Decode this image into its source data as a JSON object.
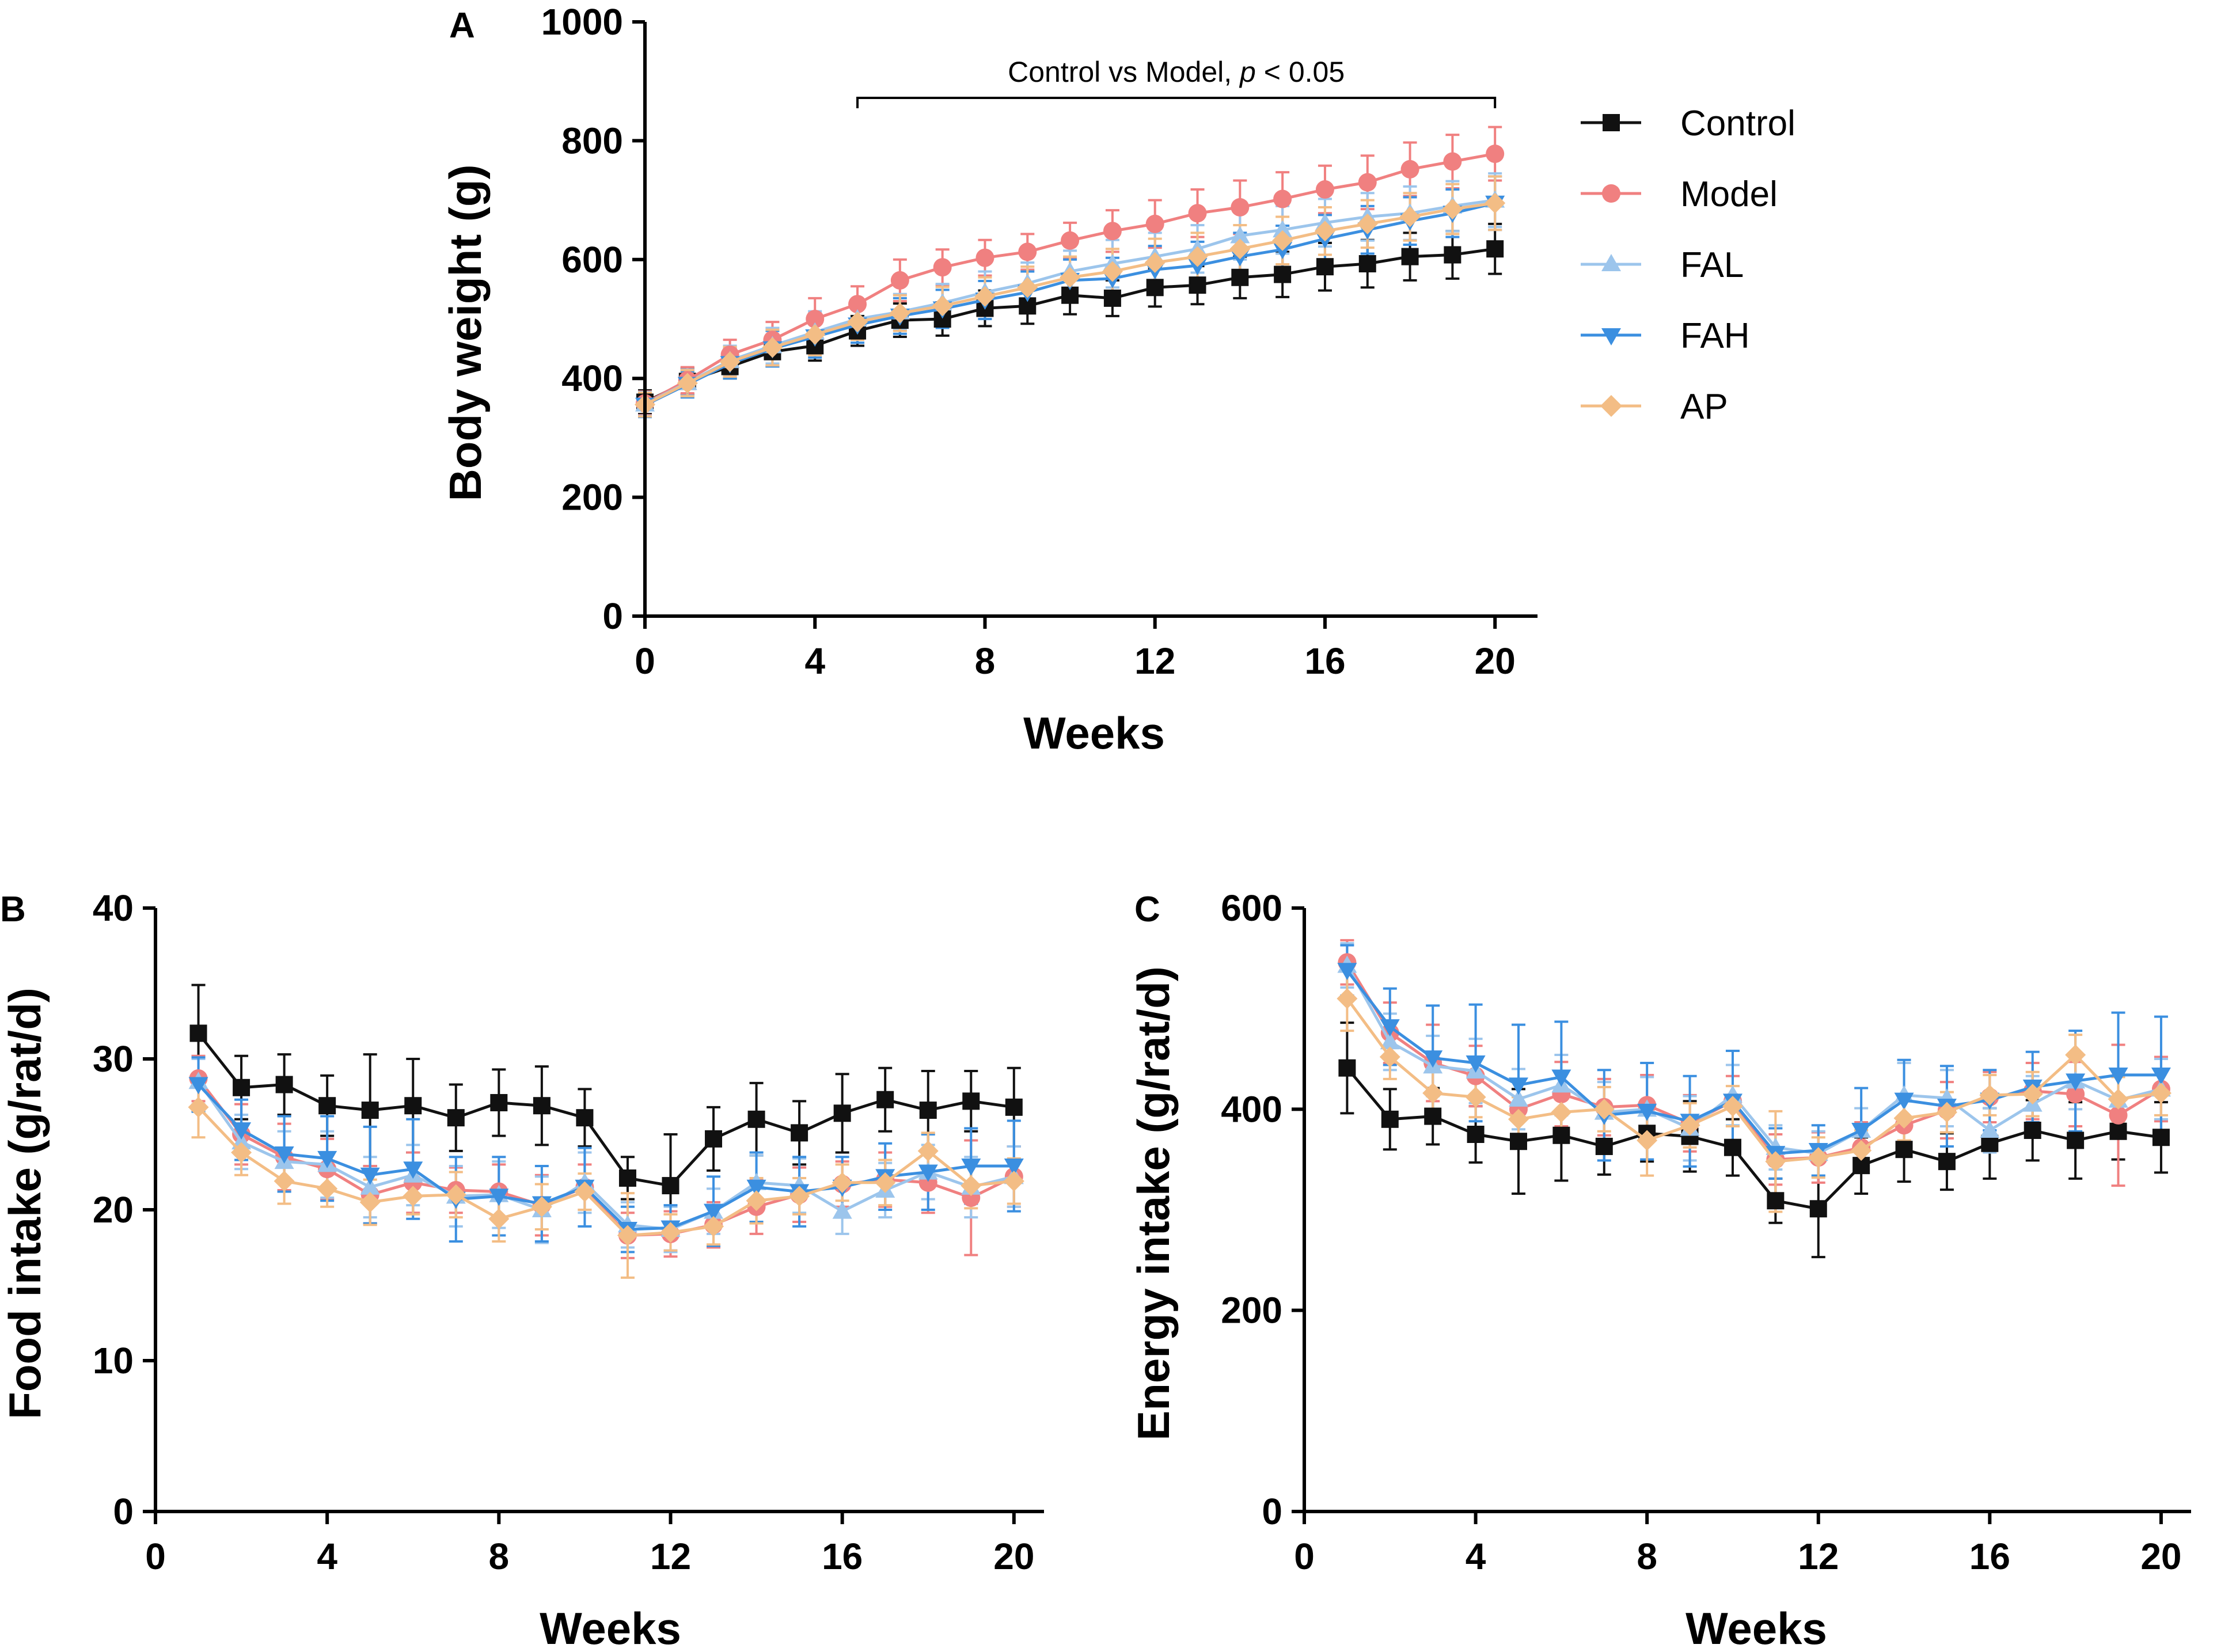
{
  "chart_data": [
    {
      "id": "A",
      "panel_label": "A",
      "type": "line",
      "xlabel": "Weeks",
      "ylabel": "Body weight (g)",
      "xlim": [
        0,
        21
      ],
      "ylim": [
        0,
        1000
      ],
      "xticks": [
        0,
        4,
        8,
        12,
        16,
        20
      ],
      "yticks": [
        0,
        200,
        400,
        600,
        800,
        1000
      ],
      "x": [
        0,
        1,
        2,
        3,
        4,
        5,
        6,
        7,
        8,
        9,
        10,
        11,
        12,
        13,
        14,
        15,
        16,
        17,
        18,
        19,
        20
      ],
      "annotation": {
        "text_prefix": "Control vs Model, ",
        "text_p": "p",
        "text_suffix": " < 0.05",
        "x_start": 5,
        "x_end": 20
      },
      "legend": {
        "position": "right",
        "entries": [
          "Control",
          "Model",
          "FAL",
          "FAH",
          "AP"
        ]
      },
      "series": [
        {
          "name": "Control",
          "values": [
            360,
            395,
            420,
            445,
            455,
            480,
            498,
            500,
            518,
            522,
            540,
            535,
            553,
            557,
            570,
            575,
            588,
            593,
            605,
            608,
            618
          ],
          "errors": [
            20,
            22,
            20,
            25,
            25,
            25,
            28,
            28,
            30,
            30,
            32,
            30,
            32,
            32,
            35,
            38,
            40,
            40,
            40,
            40,
            42
          ]
        },
        {
          "name": "Model",
          "values": [
            358,
            397,
            440,
            465,
            500,
            525,
            565,
            587,
            603,
            613,
            632,
            648,
            660,
            678,
            688,
            702,
            718,
            730,
            752,
            765,
            778
          ],
          "errors": [
            20,
            22,
            25,
            30,
            35,
            30,
            35,
            30,
            30,
            30,
            30,
            35,
            40,
            40,
            45,
            45,
            40,
            45,
            45,
            45,
            45
          ]
        },
        {
          "name": "FAL",
          "values": [
            357,
            393,
            430,
            455,
            478,
            500,
            512,
            527,
            545,
            560,
            580,
            593,
            605,
            618,
            640,
            650,
            662,
            672,
            678,
            690,
            700
          ],
          "errors": [
            20,
            22,
            25,
            30,
            35,
            30,
            30,
            32,
            35,
            35,
            35,
            40,
            40,
            40,
            40,
            40,
            40,
            40,
            45,
            42,
            45
          ]
        },
        {
          "name": "FAH",
          "values": [
            355,
            390,
            425,
            450,
            470,
            490,
            505,
            517,
            532,
            545,
            565,
            568,
            583,
            590,
            605,
            617,
            635,
            650,
            665,
            678,
            695
          ],
          "errors": [
            20,
            22,
            25,
            30,
            35,
            30,
            30,
            32,
            32,
            35,
            35,
            35,
            40,
            40,
            40,
            40,
            40,
            40,
            40,
            40,
            45
          ]
        },
        {
          "name": "AP",
          "values": [
            356,
            392,
            428,
            452,
            474,
            495,
            510,
            522,
            538,
            553,
            570,
            580,
            595,
            605,
            618,
            632,
            648,
            660,
            672,
            685,
            695
          ],
          "errors": [
            20,
            22,
            25,
            30,
            35,
            30,
            30,
            32,
            32,
            35,
            35,
            38,
            40,
            40,
            40,
            40,
            40,
            40,
            40,
            42,
            45
          ]
        }
      ]
    },
    {
      "id": "B",
      "panel_label": "B",
      "type": "line",
      "xlabel": "Weeks",
      "ylabel": "Food intake (g/rat/d)",
      "xlim": [
        0,
        20.7
      ],
      "ylim": [
        0,
        40
      ],
      "xticks": [
        0,
        4,
        8,
        12,
        16,
        20
      ],
      "yticks": [
        0,
        10,
        20,
        30,
        40
      ],
      "x": [
        1,
        2,
        3,
        4,
        5,
        6,
        7,
        8,
        9,
        10,
        11,
        12,
        13,
        14,
        15,
        16,
        17,
        18,
        19,
        20
      ],
      "series": [
        {
          "name": "Control",
          "values": [
            31.7,
            28.1,
            28.3,
            26.9,
            26.6,
            26.9,
            26.1,
            27.1,
            26.9,
            26.1,
            22.1,
            21.6,
            24.7,
            26.0,
            25.1,
            26.4,
            27.3,
            26.6,
            27.2,
            26.8
          ],
          "errors": [
            3.2,
            2.1,
            2.0,
            2.0,
            3.7,
            3.1,
            2.2,
            2.2,
            2.6,
            1.9,
            1.4,
            3.4,
            2.1,
            2.4,
            2.1,
            2.6,
            2.1,
            2.6,
            2.0,
            2.6
          ]
        },
        {
          "name": "Model",
          "values": [
            28.7,
            25.0,
            23.5,
            22.7,
            21.0,
            21.8,
            21.3,
            21.2,
            20.3,
            21.5,
            18.3,
            18.4,
            19.0,
            20.2,
            21.0,
            21.7,
            22.0,
            21.8,
            20.8,
            22.2
          ],
          "errors": [
            1.5,
            2.0,
            2.2,
            2.0,
            1.9,
            2.0,
            1.5,
            1.8,
            2.0,
            1.5,
            1.5,
            1.5,
            1.5,
            1.8,
            1.8,
            1.5,
            1.8,
            2.0,
            3.8,
            2.0
          ]
        },
        {
          "name": "FAL",
          "values": [
            28.5,
            24.5,
            23.2,
            23.0,
            21.5,
            22.3,
            20.9,
            21.0,
            20.0,
            21.8,
            19.0,
            18.7,
            19.9,
            21.8,
            21.6,
            19.9,
            21.3,
            22.5,
            21.5,
            22.2
          ],
          "errors": [
            1.5,
            1.8,
            2.0,
            2.2,
            2.0,
            2.0,
            2.0,
            2.2,
            2.2,
            2.0,
            1.5,
            1.5,
            1.5,
            1.8,
            1.8,
            1.5,
            1.8,
            1.8,
            2.0,
            2.0
          ]
        },
        {
          "name": "FAH",
          "values": [
            28.3,
            25.3,
            23.7,
            23.4,
            22.3,
            22.7,
            20.7,
            20.9,
            20.4,
            21.5,
            18.7,
            18.8,
            19.9,
            21.5,
            21.2,
            21.5,
            22.2,
            22.5,
            22.9,
            22.9
          ],
          "errors": [
            1.8,
            2.0,
            2.5,
            2.8,
            3.2,
            3.3,
            2.8,
            2.6,
            2.5,
            2.6,
            1.5,
            1.5,
            2.3,
            2.3,
            2.3,
            2.0,
            2.2,
            2.5,
            2.5,
            3.0
          ]
        },
        {
          "name": "AP",
          "values": [
            26.8,
            23.8,
            21.9,
            21.4,
            20.5,
            20.9,
            21.0,
            19.4,
            20.2,
            21.2,
            18.3,
            18.5,
            18.9,
            20.6,
            20.9,
            21.8,
            21.8,
            23.9,
            21.6,
            21.9
          ],
          "errors": [
            2.0,
            1.5,
            1.5,
            1.2,
            1.5,
            1.2,
            1.5,
            1.5,
            1.5,
            1.2,
            2.8,
            1.2,
            1.2,
            1.5,
            1.2,
            1.2,
            1.5,
            1.2,
            1.5,
            1.5
          ]
        }
      ]
    },
    {
      "id": "C",
      "panel_label": "C",
      "type": "line",
      "xlabel": "Weeks",
      "ylabel": "Energy intake (g/rat/d)",
      "xlim": [
        0,
        20.7
      ],
      "ylim": [
        0,
        600
      ],
      "xticks": [
        0,
        4,
        8,
        12,
        16,
        20
      ],
      "yticks": [
        0,
        200,
        400,
        600
      ],
      "x": [
        1,
        2,
        3,
        4,
        5,
        6,
        7,
        8,
        9,
        10,
        11,
        12,
        13,
        14,
        15,
        16,
        17,
        18,
        19,
        20
      ],
      "series": [
        {
          "name": "Control",
          "values": [
            441,
            390,
            393,
            375,
            368,
            374,
            363,
            376,
            373,
            362,
            309,
            301,
            344,
            360,
            348,
            366,
            379,
            369,
            378,
            372
          ],
          "errors": [
            45,
            30,
            28,
            28,
            52,
            45,
            28,
            28,
            35,
            28,
            22,
            48,
            28,
            32,
            28,
            35,
            30,
            38,
            28,
            35
          ]
        },
        {
          "name": "Model",
          "values": [
            546,
            476,
            446,
            433,
            400,
            415,
            402,
            404,
            386,
            408,
            350,
            352,
            362,
            384,
            399,
            412,
            418,
            415,
            394,
            420
          ],
          "errors": [
            22,
            30,
            38,
            30,
            28,
            32,
            28,
            30,
            28,
            25,
            25,
            25,
            25,
            28,
            28,
            25,
            28,
            32,
            70,
            32
          ]
        },
        {
          "name": "FAL",
          "values": [
            543,
            467,
            443,
            438,
            410,
            424,
            397,
            400,
            381,
            414,
            362,
            356,
            379,
            414,
            411,
            379,
            405,
            428,
            409,
            420
          ],
          "errors": [
            22,
            28,
            30,
            32,
            30,
            30,
            30,
            32,
            32,
            30,
            22,
            22,
            22,
            32,
            28,
            22,
            28,
            28,
            30,
            30
          ]
        },
        {
          "name": "FAH",
          "values": [
            538,
            482,
            451,
            446,
            424,
            432,
            394,
            398,
            388,
            408,
            356,
            359,
            379,
            409,
            403,
            409,
            422,
            428,
            434,
            434
          ],
          "errors": [
            25,
            38,
            52,
            58,
            60,
            55,
            45,
            48,
            45,
            50,
            25,
            25,
            42,
            40,
            40,
            30,
            35,
            50,
            62,
            58
          ]
        },
        {
          "name": "AP",
          "values": [
            510,
            452,
            416,
            412,
            390,
            397,
            400,
            369,
            384,
            403,
            348,
            352,
            359,
            391,
            397,
            414,
            415,
            454,
            410,
            416
          ],
          "errors": [
            32,
            22,
            22,
            20,
            22,
            20,
            22,
            35,
            22,
            20,
            50,
            20,
            20,
            22,
            20,
            20,
            22,
            20,
            22,
            22
          ]
        }
      ]
    }
  ],
  "series_styles": {
    "Control": {
      "color": "#111111",
      "marker": "square"
    },
    "Model": {
      "color": "#f08080",
      "marker": "circle"
    },
    "FAL": {
      "color": "#9cc5ec",
      "marker": "triangle-up"
    },
    "FAH": {
      "color": "#3b8fe0",
      "marker": "triangle-down"
    },
    "AP": {
      "color": "#f3bd85",
      "marker": "diamond"
    }
  }
}
